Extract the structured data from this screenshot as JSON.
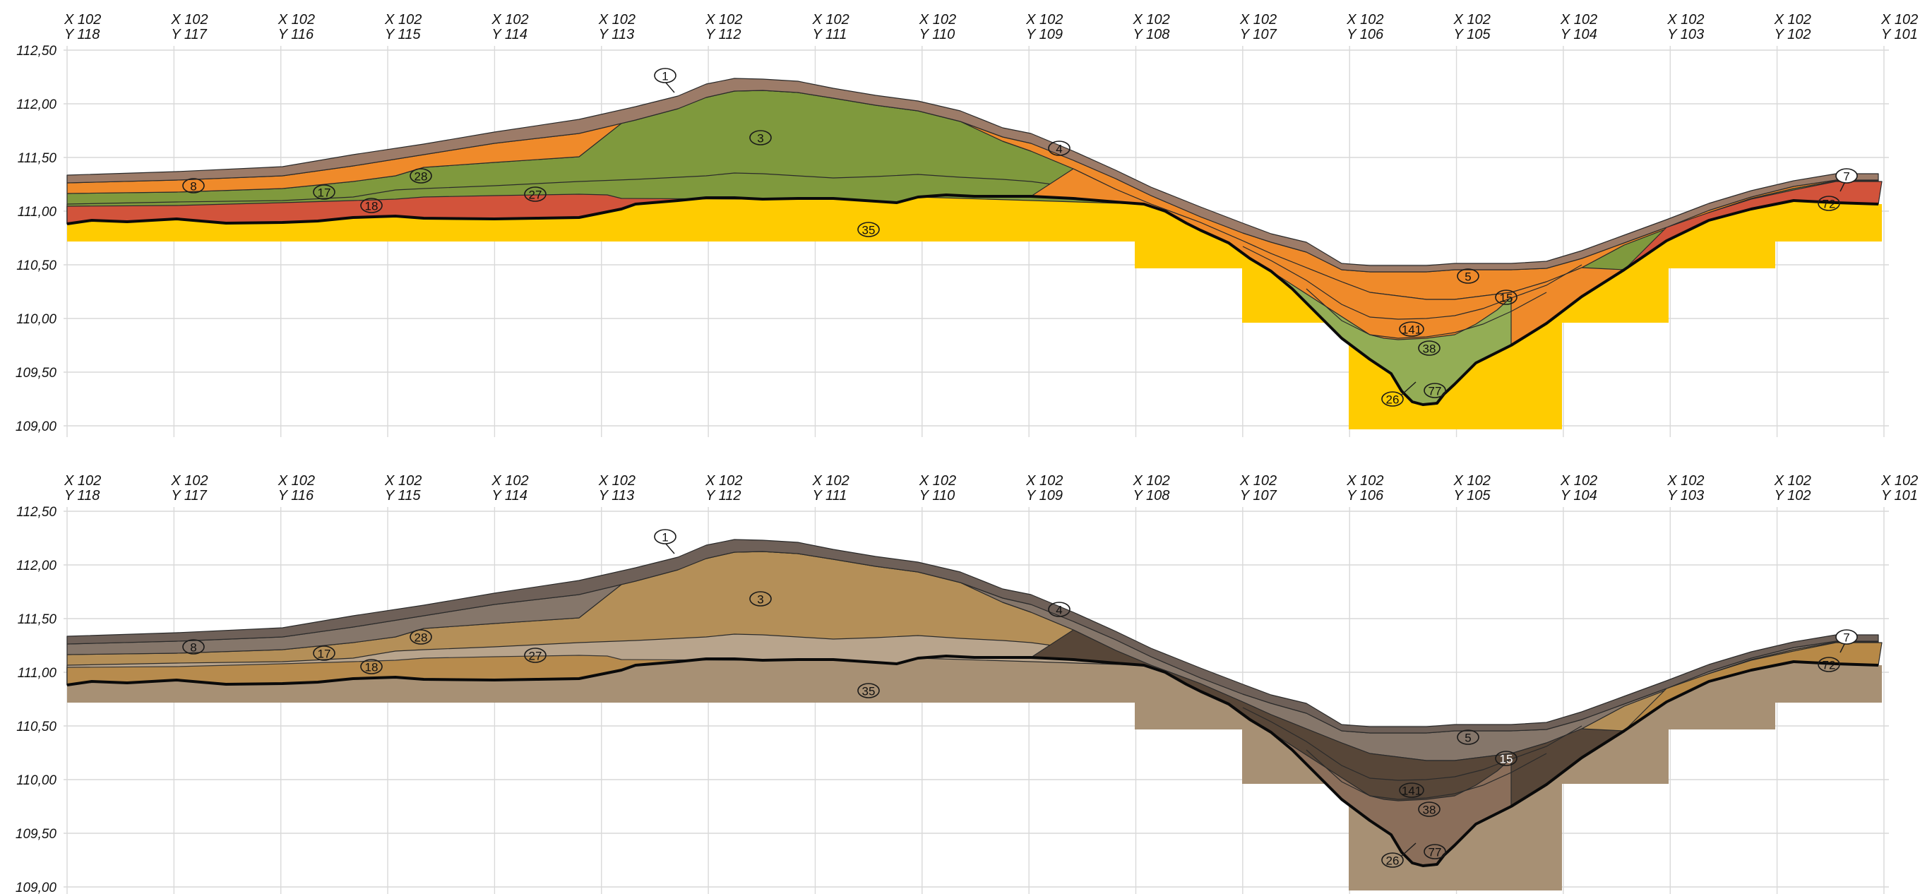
{
  "x_axis_labels": [
    {
      "x": "X 102",
      "y": "Y 118"
    },
    {
      "x": "X 102",
      "y": "Y 117"
    },
    {
      "x": "X 102",
      "y": "Y 116"
    },
    {
      "x": "X 102",
      "y": "Y 115"
    },
    {
      "x": "X 102",
      "y": "Y 114"
    },
    {
      "x": "X 102",
      "y": "Y 113"
    },
    {
      "x": "X 102",
      "y": "Y 112"
    },
    {
      "x": "X 102",
      "y": "Y 111"
    },
    {
      "x": "X 102",
      "y": "Y 110"
    },
    {
      "x": "X 102",
      "y": "Y 109"
    },
    {
      "x": "X 102",
      "y": "Y 108"
    },
    {
      "x": "X 102",
      "y": "Y 107"
    },
    {
      "x": "X 102",
      "y": "Y 106"
    },
    {
      "x": "X 102",
      "y": "Y 105"
    },
    {
      "x": "X 102",
      "y": "Y 104"
    },
    {
      "x": "X 102",
      "y": "Y 103"
    },
    {
      "x": "X 102",
      "y": "Y 102"
    },
    {
      "x": "X 102",
      "y": "Y 101"
    }
  ],
  "y_axis_labels": [
    "112,50",
    "112,00",
    "111,50",
    "111,00",
    "110,50",
    "110,00",
    "109,50",
    "109,00"
  ],
  "layer_labels": [
    "1",
    "3",
    "4",
    "8",
    "17",
    "28",
    "27",
    "18",
    "35",
    "5",
    "15",
    "141",
    "38",
    "26",
    "77",
    "7",
    "72"
  ],
  "panels": [
    {
      "name": "top",
      "colors": {
        "topsoil": "#9c7b68",
        "orange": "#ef8a2a",
        "green": "#7f993d",
        "red": "#d2533b",
        "base": "#ffcc00",
        "light_green": "#93ad55"
      }
    },
    {
      "name": "bottom",
      "colors": {
        "topsoil": "#6e6058",
        "orange": "#85766a",
        "green": "#b48f58",
        "red": "#b78947",
        "base": "#a79074",
        "light_green": "#b8a48c",
        "channel": "#574638",
        "channel_core": "#8a6e5a",
        "light": "#c1ad95"
      }
    }
  ]
}
